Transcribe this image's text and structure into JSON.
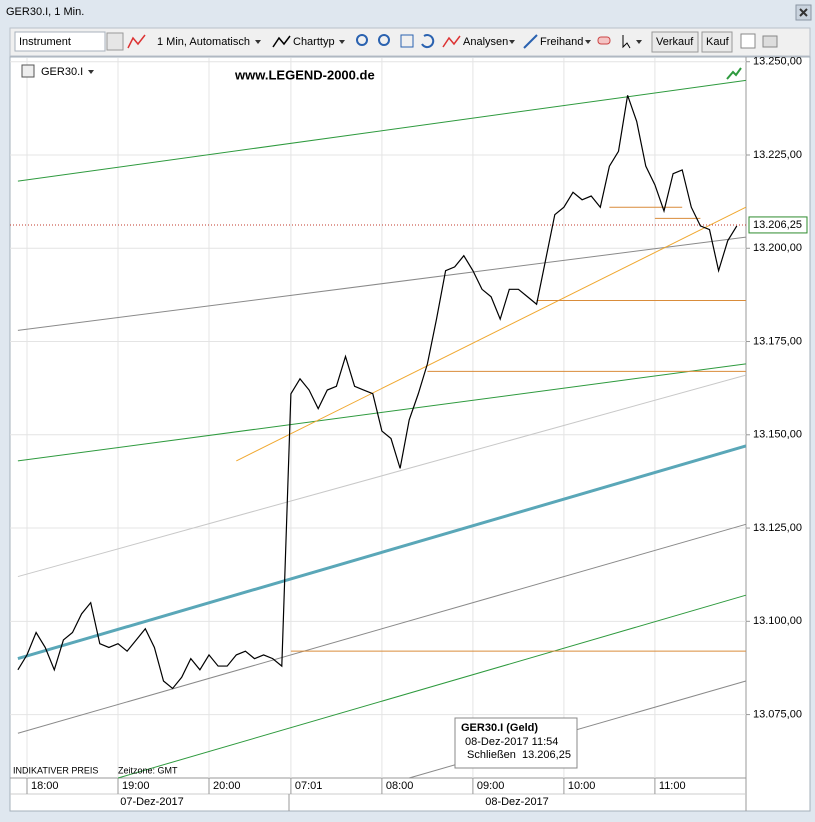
{
  "window": {
    "title": "GER30.I, 1 Min."
  },
  "toolbar": {
    "items": [
      "Instrument",
      "1 Min, Automatisch",
      "Charttyp",
      "Analysen",
      "Freihand",
      "Verkauf",
      "Kauf"
    ]
  },
  "chart_data": {
    "type": "line",
    "instrument": "GER30.I",
    "watermark": "www.LEGEND-2000.de",
    "footer": [
      "INDIKATIVER PREIS",
      "Zeitzone: GMT"
    ],
    "dates": [
      "07-Dez-2017",
      "08-Dez-2017"
    ],
    "categories": [
      null,
      "18:00",
      null,
      null,
      null,
      null,
      null,
      null,
      null,
      null,
      null,
      "19:00",
      null,
      null,
      null,
      null,
      null,
      null,
      null,
      null,
      null,
      "20:00",
      null,
      null,
      null,
      null,
      null,
      null,
      null,
      null,
      "07:01",
      null,
      null,
      null,
      null,
      null,
      null,
      null,
      null,
      null,
      "08:00",
      null,
      null,
      null,
      null,
      null,
      null,
      null,
      null,
      null,
      "09:00",
      null,
      null,
      null,
      null,
      null,
      null,
      null,
      null,
      null,
      "10:00",
      null,
      null,
      null,
      null,
      null,
      null,
      null,
      null,
      null,
      "11:00",
      null,
      null,
      null,
      null,
      null,
      null,
      null,
      null,
      null,
      null
    ],
    "series": [
      {
        "name": "GER30.I",
        "color": "#000000",
        "values": [
          13087,
          13091,
          13097,
          13093,
          13087,
          13095,
          13097,
          13102,
          13105,
          13094,
          13093,
          13094,
          13092,
          13095,
          13098,
          13093,
          13084,
          13082,
          13085,
          13090,
          13087,
          13091,
          13088,
          13088,
          13091,
          13092,
          13090,
          13091,
          13090,
          13088,
          13161,
          13165,
          13162,
          13157,
          13162,
          13163,
          13171,
          13163,
          13162,
          13161,
          13151,
          13149,
          13141,
          13154,
          13161,
          13169,
          13181,
          13194,
          13195,
          13198,
          13194,
          13189,
          13187,
          13181,
          13189,
          13189,
          13187,
          13185,
          13197,
          13209,
          13211,
          13215,
          13213,
          13214,
          13211,
          13222,
          13226,
          13241,
          13234,
          13222,
          13217,
          13210,
          13220,
          13221,
          13211,
          13206,
          13205,
          13194,
          13202,
          13206,
          null
        ]
      }
    ],
    "lines": [
      {
        "color": "#2e9a3e",
        "x": [
          0,
          80
        ],
        "values": [
          13218,
          13245
        ]
      },
      {
        "color": "#8a8a8a",
        "x": [
          0,
          80
        ],
        "values": [
          13178,
          13203
        ]
      },
      {
        "color": "#2e9a3e",
        "x": [
          0,
          80
        ],
        "values": [
          13143,
          13169
        ]
      },
      {
        "color": "#c8c8c8",
        "x": [
          0,
          80
        ],
        "values": [
          13112,
          13166
        ]
      },
      {
        "color": "#5aa7b8",
        "x": [
          0,
          80
        ],
        "values": [
          13090,
          13147
        ]
      },
      {
        "color": "#8a8a8a",
        "x": [
          0,
          80
        ],
        "values": [
          13070,
          13126
        ]
      },
      {
        "color": "#2e9a3e",
        "x": [
          11,
          80
        ],
        "values": [
          13058,
          13107
        ]
      },
      {
        "color": "#8a8a8a",
        "x": [
          43,
          80
        ],
        "values": [
          13058,
          13084
        ]
      },
      {
        "color": "#f0a830",
        "x": [
          24,
          80
        ],
        "values": [
          13143,
          13211
        ]
      }
    ],
    "levels": [
      {
        "color": "#d98c3a",
        "x": [
          30,
          80
        ],
        "value": 13092
      },
      {
        "color": "#d98c3a",
        "x": [
          45,
          80
        ],
        "value": 13167
      },
      {
        "color": "#d98c3a",
        "x": [
          57,
          80
        ],
        "value": 13186
      },
      {
        "color": "#d98c3a",
        "x": [
          65,
          73
        ],
        "value": 13211
      },
      {
        "color": "#d98c3a",
        "x": [
          70,
          75
        ],
        "value": 13208
      }
    ],
    "last_price": {
      "value": 13206.25,
      "label": "13.206,25",
      "color": "#c0392b"
    },
    "tooltip": {
      "title": "GER30.I (Geld)",
      "time": "08-Dez-2017 11:54",
      "field": "Schließen",
      "value": "13.206,25"
    },
    "ylim": [
      13058,
      13251
    ],
    "yticks": [
      {
        "value": 13075,
        "label": "13.075,00"
      },
      {
        "value": 13100,
        "label": "13.100,00"
      },
      {
        "value": 13125,
        "label": "13.125,00"
      },
      {
        "value": 13150,
        "label": "13.150,00"
      },
      {
        "value": 13175,
        "label": "13.175,00"
      },
      {
        "value": 13200,
        "label": "13.200,00"
      },
      {
        "value": 13225,
        "label": "13.225,00"
      },
      {
        "value": 13250,
        "label": "13.250,00"
      }
    ],
    "grid": true
  }
}
